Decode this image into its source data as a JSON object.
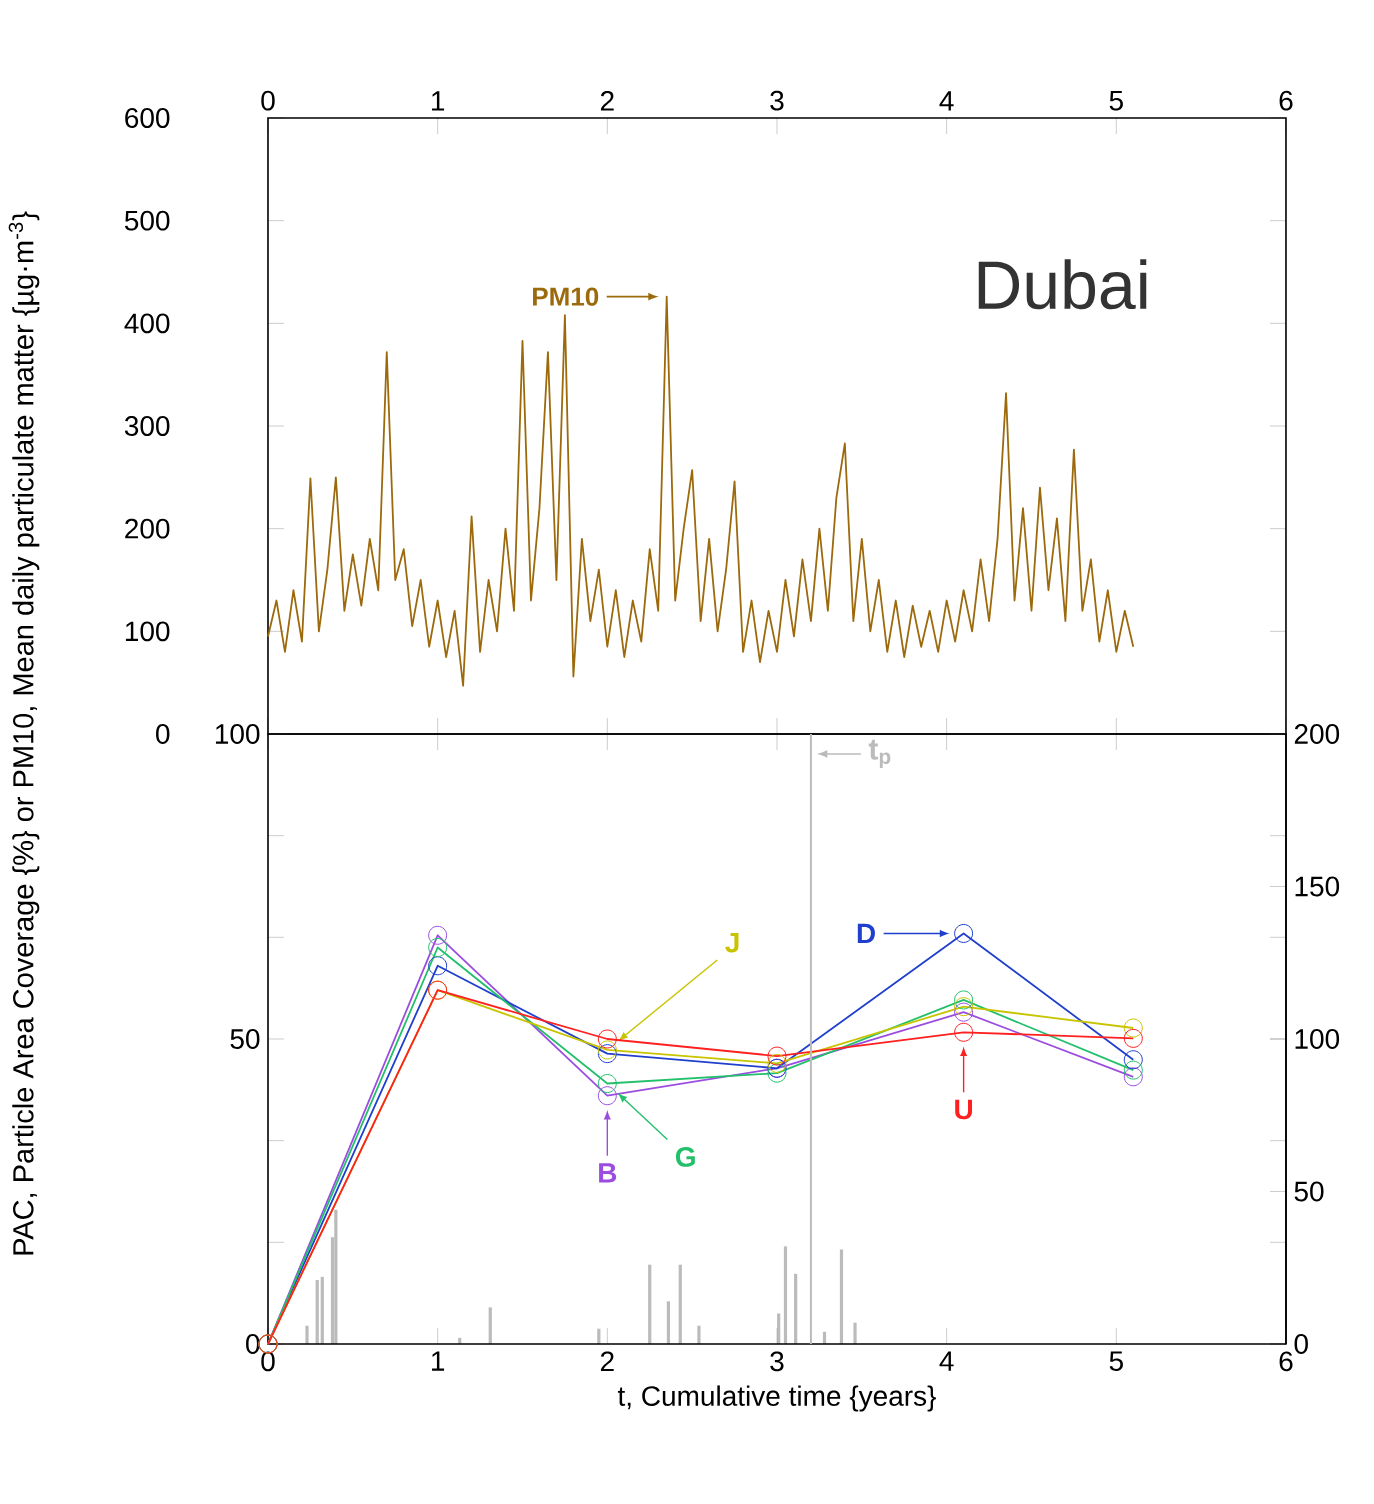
{
  "chart_data": [
    {
      "type": "line",
      "title": "Dubai",
      "xlim": [
        0,
        6
      ],
      "xticks": [
        0,
        1,
        2,
        3,
        4,
        5,
        6
      ],
      "ylim": [
        0,
        600
      ],
      "yticks": [
        0,
        100,
        200,
        300,
        400,
        500,
        600
      ],
      "marker": "none",
      "series": [
        {
          "name": "PM10",
          "color": "#9c6a0c",
          "x": [
            0,
            0.05,
            0.1,
            0.15,
            0.2,
            0.25,
            0.3,
            0.35,
            0.4,
            0.45,
            0.5,
            0.55,
            0.6,
            0.65,
            0.7,
            0.75,
            0.8,
            0.85,
            0.9,
            0.95,
            1,
            1.05,
            1.1,
            1.15,
            1.2,
            1.25,
            1.3,
            1.35,
            1.4,
            1.45,
            1.5,
            1.55,
            1.6,
            1.65,
            1.7,
            1.75,
            1.8,
            1.85,
            1.9,
            1.95,
            2,
            2.05,
            2.1,
            2.15,
            2.2,
            2.25,
            2.3,
            2.35,
            2.4,
            2.45,
            2.5,
            2.55,
            2.6,
            2.65,
            2.7,
            2.75,
            2.8,
            2.85,
            2.9,
            2.95,
            3,
            3.05,
            3.1,
            3.15,
            3.2,
            3.25,
            3.3,
            3.35,
            3.4,
            3.45,
            3.5,
            3.55,
            3.6,
            3.65,
            3.7,
            3.75,
            3.8,
            3.85,
            3.9,
            3.95,
            4,
            4.05,
            4.1,
            4.15,
            4.2,
            4.25,
            4.3,
            4.35,
            4.4,
            4.45,
            4.5,
            4.55,
            4.6,
            4.65,
            4.7,
            4.75,
            4.8,
            4.85,
            4.9,
            4.95,
            5,
            5.05,
            5.1
          ],
          "values": [
            95,
            130,
            80,
            140,
            90,
            249,
            100,
            160,
            250,
            120,
            175,
            125,
            190,
            140,
            372,
            150,
            180,
            105,
            150,
            85,
            130,
            75,
            120,
            47,
            212,
            80,
            150,
            100,
            200,
            120,
            383,
            130,
            220,
            372,
            150,
            408,
            56,
            190,
            110,
            160,
            85,
            140,
            75,
            130,
            90,
            180,
            120,
            426,
            130,
            200,
            257,
            110,
            190,
            100,
            160,
            246,
            80,
            130,
            70,
            120,
            80,
            150,
            95,
            170,
            110,
            200,
            120,
            230,
            283,
            110,
            190,
            100,
            150,
            80,
            130,
            75,
            125,
            85,
            120,
            80,
            130,
            90,
            140,
            100,
            170,
            110,
            190,
            332,
            130,
            220,
            120,
            240,
            140,
            210,
            110,
            277,
            120,
            170,
            90,
            140,
            80,
            120,
            85
          ]
        }
      ]
    },
    {
      "type": "line",
      "xlabel": "t, Cumulative time {years}",
      "ylabel": "PAC, Particle Area Coverage {%} or PM10, Mean daily particulate matter {µg·m$^{-3}$}",
      "xlim": [
        0,
        6
      ],
      "xticks": [
        0,
        1,
        2,
        3,
        4,
        5,
        6
      ],
      "ylim": [
        0,
        100
      ],
      "yticks": [
        0,
        {
          "value": 16.67,
          "label": null
        },
        {
          "value": 33.33,
          "label": null
        },
        50,
        {
          "value": 66.67,
          "label": null
        },
        {
          "value": 83.33,
          "label": null
        },
        100
      ],
      "y2lim": [
        0,
        200
      ],
      "y2ticks": [
        0,
        50,
        100,
        150,
        200
      ],
      "marker": "circle",
      "x": [
        0,
        1,
        2,
        3,
        4.1,
        5.1
      ],
      "ref_lines": [
        {
          "axis": "x",
          "value": 3.2,
          "label": "t$_{p}$",
          "color": "#bbbbbb"
        }
      ],
      "series": [
        {
          "name": "B",
          "color": "#9b4de0",
          "values": [
            0,
            67,
            40.7,
            45.2,
            54.4,
            43.8
          ]
        },
        {
          "name": "D",
          "color": "#1f3fcc",
          "values": [
            0,
            62,
            47.6,
            45.2,
            67.3,
            46.6
          ]
        },
        {
          "name": "G",
          "color": "#22c06a",
          "values": [
            0,
            65,
            42.7,
            44.4,
            56.4,
            44.9
          ]
        },
        {
          "name": "J",
          "color": "#c8c400",
          "values": [
            0,
            58,
            48.2,
            46,
            55.3,
            51.8
          ]
        },
        {
          "name": "U",
          "color": "#ff2020",
          "values": [
            0,
            58,
            50,
            47.2,
            51.1,
            50.1
          ]
        },
        {
          "type": "bar",
          "axis": "y2",
          "color": "#bbbbbb",
          "x": [
            0.23,
            0.29,
            0.32,
            0.38,
            0.4,
            1.13,
            1.31,
            1.95,
            2.25,
            2.36,
            2.43,
            2.54,
            3.01,
            3.05,
            3.11,
            3.28,
            3.38,
            3.46
          ],
          "values": [
            6,
            21,
            22,
            35,
            44,
            2,
            12,
            5,
            26,
            14,
            26,
            6,
            10,
            32,
            23,
            4,
            31,
            7
          ]
        }
      ]
    }
  ]
}
